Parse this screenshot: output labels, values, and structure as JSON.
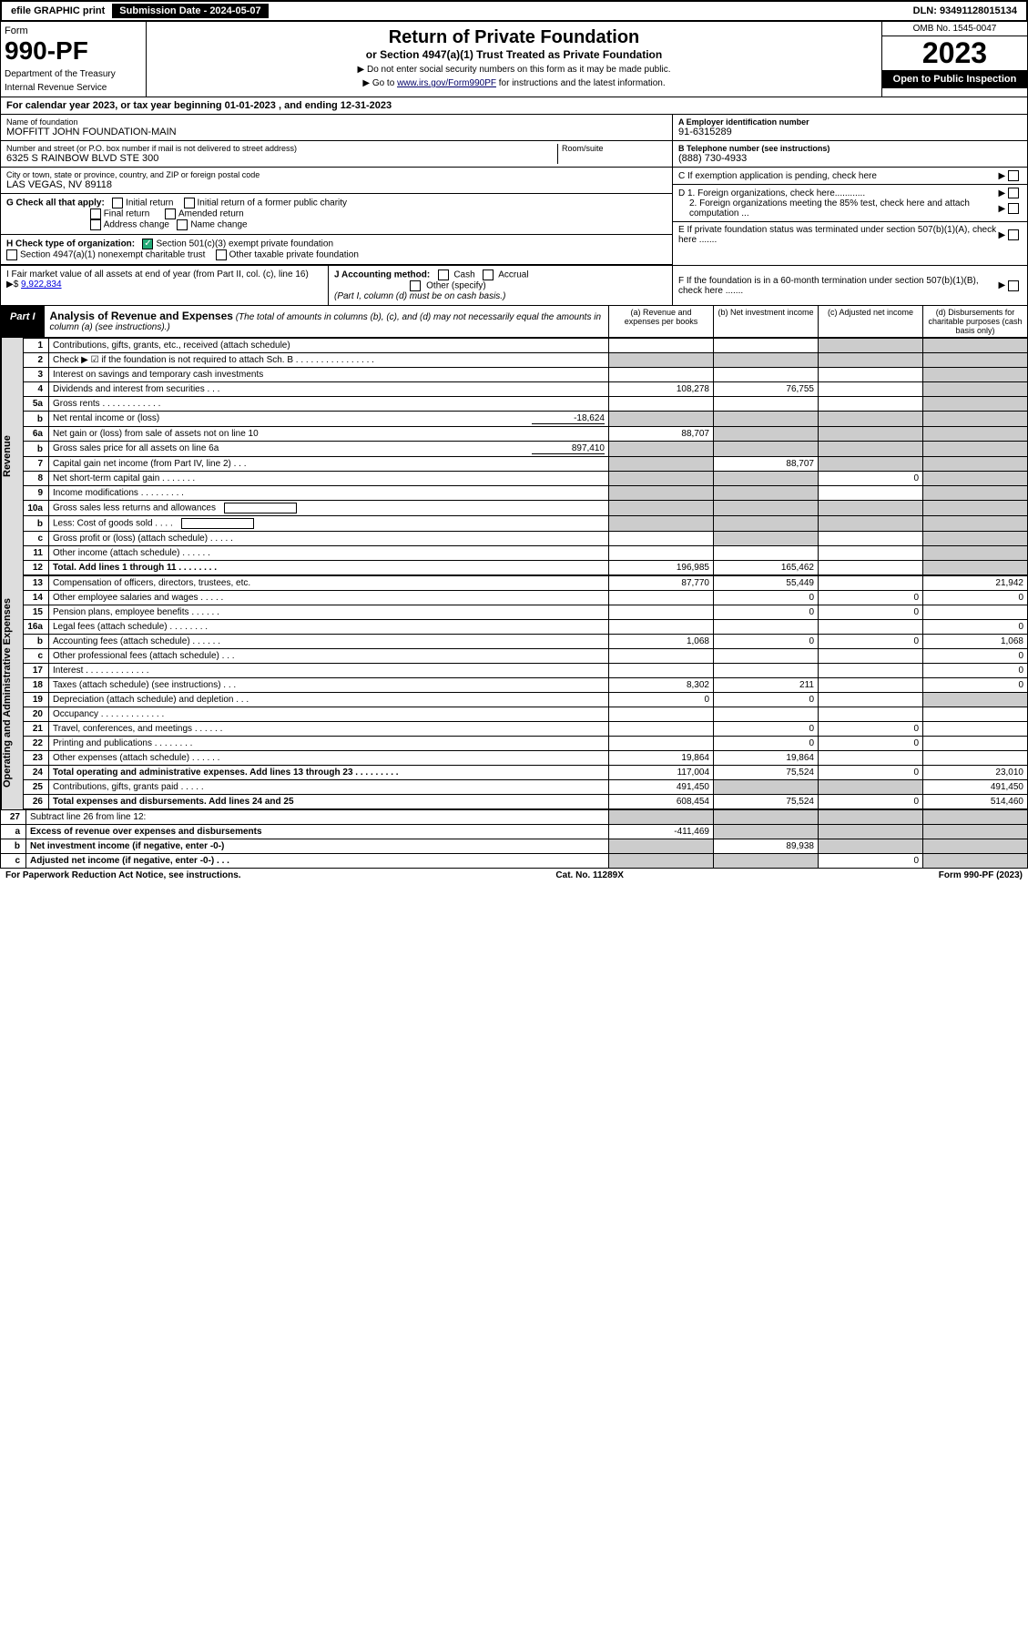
{
  "top": {
    "efile": "efile GRAPHIC print",
    "sub_date_label": "Submission Date - 2024-05-07",
    "dln": "DLN: 93491128015134"
  },
  "header": {
    "form_label": "Form",
    "form_no": "990-PF",
    "dept": "Department of the Treasury",
    "irs": "Internal Revenue Service",
    "title": "Return of Private Foundation",
    "subtitle": "or Section 4947(a)(1) Trust Treated as Private Foundation",
    "instr1": "▶ Do not enter social security numbers on this form as it may be made public.",
    "instr2_pre": "▶ Go to ",
    "instr2_link": "www.irs.gov/Form990PF",
    "instr2_post": " for instructions and the latest information.",
    "omb": "OMB No. 1545-0047",
    "year": "2023",
    "open": "Open to Public Inspection"
  },
  "cal_year": "For calendar year 2023, or tax year beginning 01-01-2023              , and ending 12-31-2023",
  "info": {
    "name_label": "Name of foundation",
    "name": "MOFFITT JOHN FOUNDATION-MAIN",
    "addr_label": "Number and street (or P.O. box number if mail is not delivered to street address)",
    "addr": "6325 S RAINBOW BLVD STE 300",
    "room_label": "Room/suite",
    "city_label": "City or town, state or province, country, and ZIP or foreign postal code",
    "city": "LAS VEGAS, NV  89118",
    "a_label": "A Employer identification number",
    "a_val": "91-6315289",
    "b_label": "B Telephone number (see instructions)",
    "b_val": "(888) 730-4933",
    "c_label": "C If exemption application is pending, check here",
    "d1_label": "D 1. Foreign organizations, check here............",
    "d2_label": "2. Foreign organizations meeting the 85% test, check here and attach computation ...",
    "e_label": "E  If private foundation status was terminated under section 507(b)(1)(A), check here .......",
    "f_label": "F  If the foundation is in a 60-month termination under section 507(b)(1)(B), check here .......",
    "g_label": "G Check all that apply:",
    "g_opts": [
      "Initial return",
      "Initial return of a former public charity",
      "Final return",
      "Amended return",
      "Address change",
      "Name change"
    ],
    "h_label": "H Check type of organization:",
    "h1": "Section 501(c)(3) exempt private foundation",
    "h2": "Section 4947(a)(1) nonexempt charitable trust",
    "h3": "Other taxable private foundation",
    "i_label": "I Fair market value of all assets at end of year (from Part II, col. (c), line 16) ▶$",
    "i_val": "9,922,834",
    "j_label": "J Accounting method:",
    "j_opts": [
      "Cash",
      "Accrual"
    ],
    "j_other": "Other (specify)",
    "j_note": "(Part I, column (d) must be on cash basis.)"
  },
  "part1": {
    "tag": "Part I",
    "title": "Analysis of Revenue and Expenses",
    "title_note": "(The total of amounts in columns (b), (c), and (d) may not necessarily equal the amounts in column (a) (see instructions).)",
    "cols": {
      "a": "(a)   Revenue and expenses per books",
      "b": "(b)   Net investment income",
      "c": "(c)   Adjusted net income",
      "d": "(d)   Disbursements for charitable purposes (cash basis only)"
    }
  },
  "sections": {
    "revenue": "Revenue",
    "expenses": "Operating and Administrative Expenses"
  },
  "rows": [
    {
      "n": "1",
      "d": "Contributions, gifts, grants, etc., received (attach schedule)",
      "a": "",
      "b": "",
      "c": "g",
      "dd": "g"
    },
    {
      "n": "2",
      "d": "Check ▶ ☑ if the foundation is not required to attach Sch. B    .   .   .   .   .   .   .   .   .   .   .   .   .   .   .   .",
      "a": "g",
      "b": "g",
      "c": "g",
      "dd": "g"
    },
    {
      "n": "3",
      "d": "Interest on savings and temporary cash investments",
      "a": "",
      "b": "",
      "c": "",
      "dd": "g"
    },
    {
      "n": "4",
      "d": "Dividends and interest from securities    .   .   .",
      "a": "108,278",
      "b": "76,755",
      "c": "",
      "dd": "g"
    },
    {
      "n": "5a",
      "d": "Gross rents    .   .   .   .   .   .   .   .   .   .   .   .",
      "a": "",
      "b": "",
      "c": "",
      "dd": "g"
    },
    {
      "n": "b",
      "d": "Net rental income or (loss)",
      "inline": "-18,624",
      "a": "g",
      "b": "g",
      "c": "g",
      "dd": "g"
    },
    {
      "n": "6a",
      "d": "Net gain or (loss) from sale of assets not on line 10",
      "a": "88,707",
      "b": "g",
      "c": "g",
      "dd": "g"
    },
    {
      "n": "b",
      "d": "Gross sales price for all assets on line 6a",
      "inline": "897,410",
      "a": "g",
      "b": "g",
      "c": "g",
      "dd": "g"
    },
    {
      "n": "7",
      "d": "Capital gain net income (from Part IV, line 2)   .   .   .",
      "a": "g",
      "b": "88,707",
      "c": "g",
      "dd": "g"
    },
    {
      "n": "8",
      "d": "Net short-term capital gain   .   .   .   .   .   .   .",
      "a": "g",
      "b": "g",
      "c": "0",
      "dd": "g"
    },
    {
      "n": "9",
      "d": "Income modifications  .   .   .   .   .   .   .   .   .",
      "a": "g",
      "b": "g",
      "c": "",
      "dd": "g"
    },
    {
      "n": "10a",
      "d": "Gross sales less returns and allowances",
      "box": true,
      "a": "g",
      "b": "g",
      "c": "g",
      "dd": "g"
    },
    {
      "n": "b",
      "d": "Less: Cost of goods sold    .   .   .   .",
      "box": true,
      "a": "g",
      "b": "g",
      "c": "g",
      "dd": "g"
    },
    {
      "n": "c",
      "d": "Gross profit or (loss) (attach schedule)    .   .   .   .   .",
      "a": "",
      "b": "g",
      "c": "",
      "dd": "g"
    },
    {
      "n": "11",
      "d": "Other income (attach schedule)    .   .   .   .   .   .",
      "a": "",
      "b": "",
      "c": "",
      "dd": "g"
    },
    {
      "n": "12",
      "d": "Total. Add lines 1 through 11    .   .   .   .   .   .   .   .",
      "bold": true,
      "a": "196,985",
      "b": "165,462",
      "c": "",
      "dd": "g"
    }
  ],
  "exp_rows": [
    {
      "n": "13",
      "d": "Compensation of officers, directors, trustees, etc.",
      "a": "87,770",
      "b": "55,449",
      "c": "",
      "dd": "21,942"
    },
    {
      "n": "14",
      "d": "Other employee salaries and wages    .   .   .   .   .",
      "a": "",
      "b": "0",
      "c": "0",
      "dd": "0"
    },
    {
      "n": "15",
      "d": "Pension plans, employee benefits    .   .   .   .   .   .",
      "a": "",
      "b": "0",
      "c": "0",
      "dd": ""
    },
    {
      "n": "16a",
      "d": "Legal fees (attach schedule)  .   .   .   .   .   .   .   .",
      "a": "",
      "b": "",
      "c": "",
      "dd": "0"
    },
    {
      "n": "b",
      "d": "Accounting fees (attach schedule)  .   .   .   .   .   .",
      "a": "1,068",
      "b": "0",
      "c": "0",
      "dd": "1,068"
    },
    {
      "n": "c",
      "d": "Other professional fees (attach schedule)    .   .   .",
      "a": "",
      "b": "",
      "c": "",
      "dd": "0"
    },
    {
      "n": "17",
      "d": "Interest   .   .   .   .   .   .   .   .   .   .   .   .   .",
      "a": "",
      "b": "",
      "c": "",
      "dd": "0"
    },
    {
      "n": "18",
      "d": "Taxes (attach schedule) (see instructions)    .   .   .",
      "a": "8,302",
      "b": "211",
      "c": "",
      "dd": "0"
    },
    {
      "n": "19",
      "d": "Depreciation (attach schedule) and depletion    .   .   .",
      "a": "0",
      "b": "0",
      "c": "",
      "dd": "g"
    },
    {
      "n": "20",
      "d": "Occupancy  .   .   .   .   .   .   .   .   .   .   .   .   .",
      "a": "",
      "b": "",
      "c": "",
      "dd": ""
    },
    {
      "n": "21",
      "d": "Travel, conferences, and meetings  .   .   .   .   .   .",
      "a": "",
      "b": "0",
      "c": "0",
      "dd": ""
    },
    {
      "n": "22",
      "d": "Printing and publications  .   .   .   .   .   .   .   .",
      "a": "",
      "b": "0",
      "c": "0",
      "dd": ""
    },
    {
      "n": "23",
      "d": "Other expenses (attach schedule)  .   .   .   .   .   .",
      "a": "19,864",
      "b": "19,864",
      "c": "",
      "dd": ""
    },
    {
      "n": "24",
      "d": "Total operating and administrative expenses. Add lines 13 through 23    .   .   .   .   .   .   .   .   .",
      "bold": true,
      "a": "117,004",
      "b": "75,524",
      "c": "0",
      "dd": "23,010"
    },
    {
      "n": "25",
      "d": "Contributions, gifts, grants paid    .   .   .   .   .",
      "a": "491,450",
      "b": "g",
      "c": "g",
      "dd": "491,450"
    },
    {
      "n": "26",
      "d": "Total expenses and disbursements. Add lines 24 and 25",
      "bold": true,
      "a": "608,454",
      "b": "75,524",
      "c": "0",
      "dd": "514,460"
    }
  ],
  "bottom_rows": [
    {
      "n": "27",
      "d": "Subtract line 26 from line 12:",
      "a": "g",
      "b": "g",
      "c": "g",
      "dd": "g"
    },
    {
      "n": "a",
      "d": "Excess of revenue over expenses and disbursements",
      "bold": true,
      "a": "-411,469",
      "b": "g",
      "c": "g",
      "dd": "g"
    },
    {
      "n": "b",
      "d": "Net investment income (if negative, enter -0-)",
      "bold": true,
      "a": "g",
      "b": "89,938",
      "c": "g",
      "dd": "g"
    },
    {
      "n": "c",
      "d": "Adjusted net income (if negative, enter -0-)    .   .   .",
      "bold": true,
      "a": "g",
      "b": "g",
      "c": "0",
      "dd": "g"
    }
  ],
  "footer": {
    "left": "For Paperwork Reduction Act Notice, see instructions.",
    "mid": "Cat. No. 11289X",
    "right": "Form 990-PF (2023)"
  },
  "colors": {
    "black": "#000000",
    "grey": "#cccccc",
    "link": "#0000dd",
    "check": "#22aa77"
  }
}
